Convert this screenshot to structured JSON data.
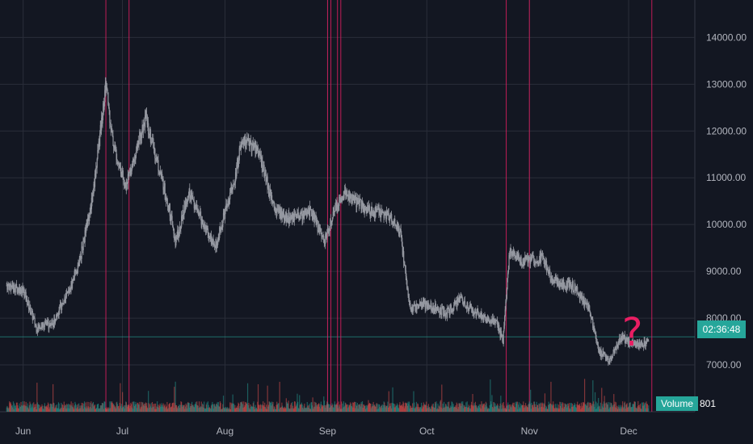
{
  "chart_data": {
    "type": "candlestick",
    "x_ticks": [
      "Jun",
      "Jul",
      "Aug",
      "Sep",
      "Oct",
      "Nov",
      "Dec"
    ],
    "y_ticks": [
      "7000.00",
      "8000.00",
      "9000.00",
      "10000.00",
      "11000.00",
      "12000.00",
      "13000.00",
      "14000.00"
    ],
    "ylim": [
      6000,
      14800
    ],
    "grid": true,
    "approx_price_path": [
      [
        "2019-05-27",
        8700
      ],
      [
        "2019-06-01",
        8600
      ],
      [
        "2019-06-05",
        7800
      ],
      [
        "2019-06-10",
        7900
      ],
      [
        "2019-06-15",
        8600
      ],
      [
        "2019-06-18",
        9200
      ],
      [
        "2019-06-22",
        10600
      ],
      [
        "2019-06-26",
        13000
      ],
      [
        "2019-06-28",
        11800
      ],
      [
        "2019-07-02",
        10800
      ],
      [
        "2019-07-08",
        12300
      ],
      [
        "2019-07-11",
        11500
      ],
      [
        "2019-07-15",
        10400
      ],
      [
        "2019-07-17",
        9600
      ],
      [
        "2019-07-21",
        10700
      ],
      [
        "2019-07-29",
        9500
      ],
      [
        "2019-08-04",
        11000
      ],
      [
        "2019-08-06",
        11800
      ],
      [
        "2019-08-11",
        11600
      ],
      [
        "2019-08-16",
        10300
      ],
      [
        "2019-08-21",
        10100
      ],
      [
        "2019-08-27",
        10300
      ],
      [
        "2019-08-31",
        9600
      ],
      [
        "2019-09-03",
        10300
      ],
      [
        "2019-09-06",
        10700
      ],
      [
        "2019-09-13",
        10300
      ],
      [
        "2019-09-20",
        10200
      ],
      [
        "2019-09-23",
        9800
      ],
      [
        "2019-09-26",
        8200
      ],
      [
        "2019-10-01",
        8300
      ],
      [
        "2019-10-07",
        8100
      ],
      [
        "2019-10-11",
        8400
      ],
      [
        "2019-10-18",
        8000
      ],
      [
        "2019-10-22",
        7900
      ],
      [
        "2019-10-24",
        7500
      ],
      [
        "2019-10-26",
        9400
      ],
      [
        "2019-10-30",
        9200
      ],
      [
        "2019-11-05",
        9300
      ],
      [
        "2019-11-08",
        8800
      ],
      [
        "2019-11-14",
        8700
      ],
      [
        "2019-11-19",
        8200
      ],
      [
        "2019-11-22",
        7300
      ],
      [
        "2019-11-25",
        7100
      ],
      [
        "2019-11-29",
        7600
      ],
      [
        "2019-12-03",
        7400
      ],
      [
        "2019-12-07",
        7500
      ]
    ],
    "vertical_markers": [
      "2019-06-26",
      "2019-07-03",
      "2019-09-01",
      "2019-09-02",
      "2019-09-04",
      "2019-09-05",
      "2019-10-25",
      "2019-11-01",
      "2019-12-08"
    ]
  },
  "price_tag": "02:36:48",
  "volume": {
    "label": "Volume",
    "value": "801"
  },
  "annotation": "?",
  "colors": {
    "background": "#131722",
    "grid": "#2a2e39",
    "candle": "#9598a1",
    "marker": "#e91e63",
    "volume_up": "#26a69a",
    "volume_down": "#ef5350",
    "accent": "#26a69a"
  }
}
